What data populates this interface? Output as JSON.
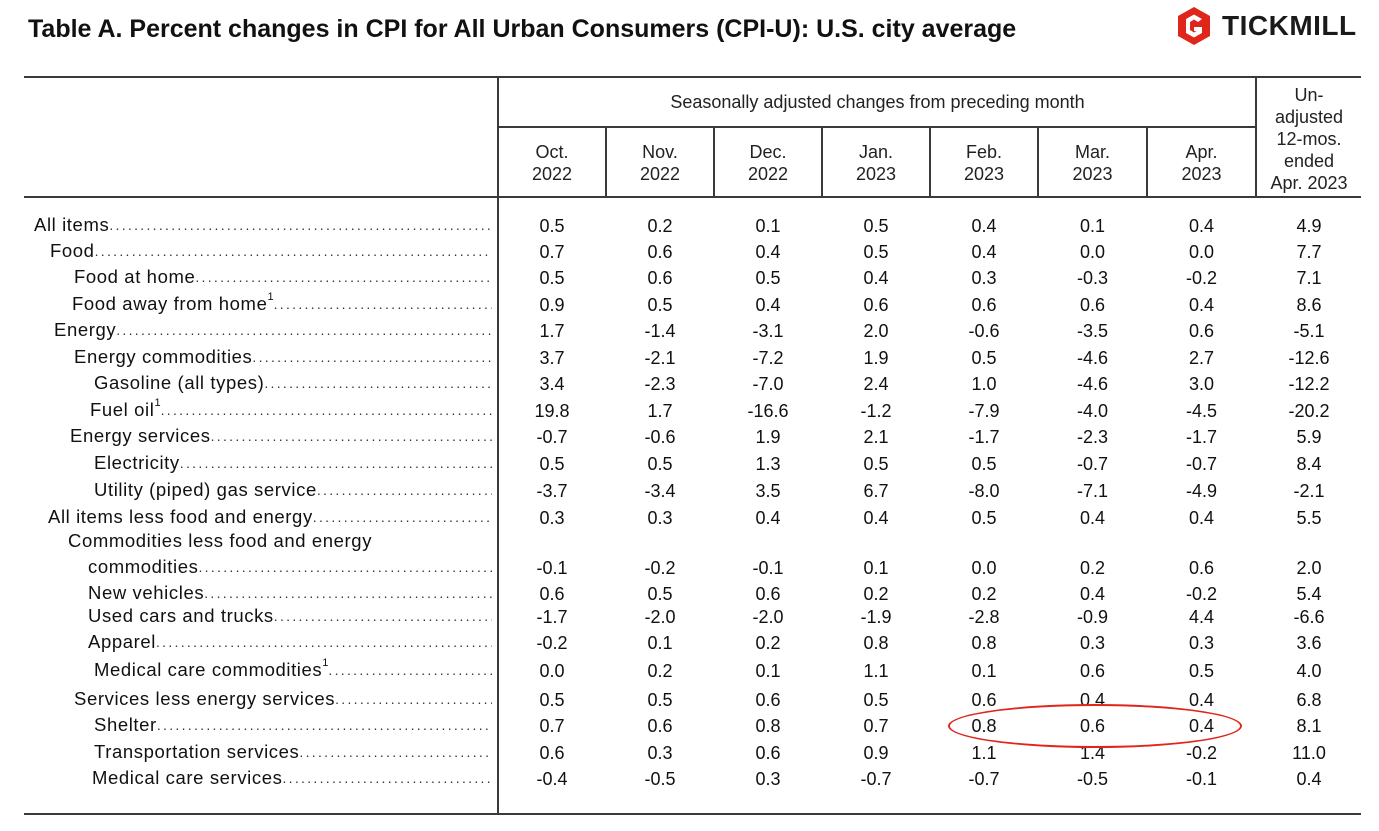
{
  "title": "Table A. Percent changes in CPI for All Urban Consumers (CPI-U): U.S. city average",
  "brand": {
    "name": "TICKMILL",
    "icon": "tickmill-logo-icon",
    "color": "#e0251b"
  },
  "header": {
    "span_label": "Seasonally adjusted changes from preceding month",
    "columns": [
      {
        "month": "Oct.",
        "year": "2022"
      },
      {
        "month": "Nov.",
        "year": "2022"
      },
      {
        "month": "Dec.",
        "year": "2022"
      },
      {
        "month": "Jan.",
        "year": "2023"
      },
      {
        "month": "Feb.",
        "year": "2023"
      },
      {
        "month": "Mar.",
        "year": "2023"
      },
      {
        "month": "Apr.",
        "year": "2023"
      }
    ],
    "unadjusted": [
      "Un-",
      "adjusted",
      "12-mos.",
      "ended",
      "Apr. 2023"
    ]
  },
  "rows": [
    {
      "label": "All items",
      "sup": "",
      "values": [
        "0.5",
        "0.2",
        "0.1",
        "0.5",
        "0.4",
        "0.1",
        "0.4",
        "4.9"
      ]
    },
    {
      "label": "Food",
      "sup": "",
      "values": [
        "0.7",
        "0.6",
        "0.4",
        "0.5",
        "0.4",
        "0.0",
        "0.0",
        "7.7"
      ]
    },
    {
      "label": "Food at home",
      "sup": "",
      "values": [
        "0.5",
        "0.6",
        "0.5",
        "0.4",
        "0.3",
        "-0.3",
        "-0.2",
        "7.1"
      ]
    },
    {
      "label": "Food away from home",
      "sup": "1",
      "values": [
        "0.9",
        "0.5",
        "0.4",
        "0.6",
        "0.6",
        "0.6",
        "0.4",
        "8.6"
      ]
    },
    {
      "label": "Energy",
      "sup": "",
      "values": [
        "1.7",
        "-1.4",
        "-3.1",
        "2.0",
        "-0.6",
        "-3.5",
        "0.6",
        "-5.1"
      ]
    },
    {
      "label": "Energy commodities",
      "sup": "",
      "values": [
        "3.7",
        "-2.1",
        "-7.2",
        "1.9",
        "0.5",
        "-4.6",
        "2.7",
        "-12.6"
      ]
    },
    {
      "label": "Gasoline (all types)",
      "sup": "",
      "values": [
        "3.4",
        "-2.3",
        "-7.0",
        "2.4",
        "1.0",
        "-4.6",
        "3.0",
        "-12.2"
      ]
    },
    {
      "label": "Fuel oil",
      "sup": "1",
      "values": [
        "19.8",
        "1.7",
        "-16.6",
        "-1.2",
        "-7.9",
        "-4.0",
        "-4.5",
        "-20.2"
      ]
    },
    {
      "label": "Energy services",
      "sup": "",
      "values": [
        "-0.7",
        "-0.6",
        "1.9",
        "2.1",
        "-1.7",
        "-2.3",
        "-1.7",
        "5.9"
      ]
    },
    {
      "label": "Electricity",
      "sup": "",
      "values": [
        "0.5",
        "0.5",
        "1.3",
        "0.5",
        "0.5",
        "-0.7",
        "-0.7",
        "8.4"
      ]
    },
    {
      "label": "Utility (piped) gas service",
      "sup": "",
      "values": [
        "-3.7",
        "-3.4",
        "3.5",
        "6.7",
        "-8.0",
        "-7.1",
        "-4.9",
        "-2.1"
      ]
    },
    {
      "label": "All items less food and energy",
      "sup": "",
      "values": [
        "0.3",
        "0.3",
        "0.4",
        "0.4",
        "0.5",
        "0.4",
        "0.4",
        "5.5"
      ]
    },
    {
      "label_line1": "Commodities less food and energy",
      "label": "commodities",
      "sup": "",
      "values": [
        "-0.1",
        "-0.2",
        "-0.1",
        "0.1",
        "0.0",
        "0.2",
        "0.6",
        "2.0"
      ]
    },
    {
      "label": "New vehicles",
      "sup": "",
      "values": [
        "0.6",
        "0.5",
        "0.6",
        "0.2",
        "0.2",
        "0.4",
        "-0.2",
        "5.4"
      ]
    },
    {
      "label": "Used cars and trucks",
      "sup": "",
      "values": [
        "-1.7",
        "-2.0",
        "-2.0",
        "-1.9",
        "-2.8",
        "-0.9",
        "4.4",
        "-6.6"
      ]
    },
    {
      "label": "Apparel",
      "sup": "",
      "values": [
        "-0.2",
        "0.1",
        "0.2",
        "0.8",
        "0.8",
        "0.3",
        "0.3",
        "3.6"
      ]
    },
    {
      "label": "Medical care commodities",
      "sup": "1",
      "values": [
        "0.0",
        "0.2",
        "0.1",
        "1.1",
        "0.1",
        "0.6",
        "0.5",
        "4.0"
      ]
    },
    {
      "label": "Services less energy services",
      "sup": "",
      "values": [
        "0.5",
        "0.5",
        "0.6",
        "0.5",
        "0.6",
        "0.4",
        "0.4",
        "6.8"
      ]
    },
    {
      "label": "Shelter",
      "sup": "",
      "values": [
        "0.7",
        "0.6",
        "0.8",
        "0.7",
        "0.8",
        "0.6",
        "0.4",
        "8.1"
      ]
    },
    {
      "label": "Transportation services",
      "sup": "",
      "values": [
        "0.6",
        "0.3",
        "0.6",
        "0.9",
        "1.1",
        "1.4",
        "-0.2",
        "11.0"
      ]
    },
    {
      "label": "Medical care services",
      "sup": "",
      "values": [
        "-0.4",
        "-0.5",
        "0.3",
        "-0.7",
        "-0.7",
        "-0.5",
        "-0.1",
        "0.4"
      ]
    }
  ],
  "annotation": {
    "name": "shelter-feb-apr-highlight",
    "color": "#e0251b"
  }
}
